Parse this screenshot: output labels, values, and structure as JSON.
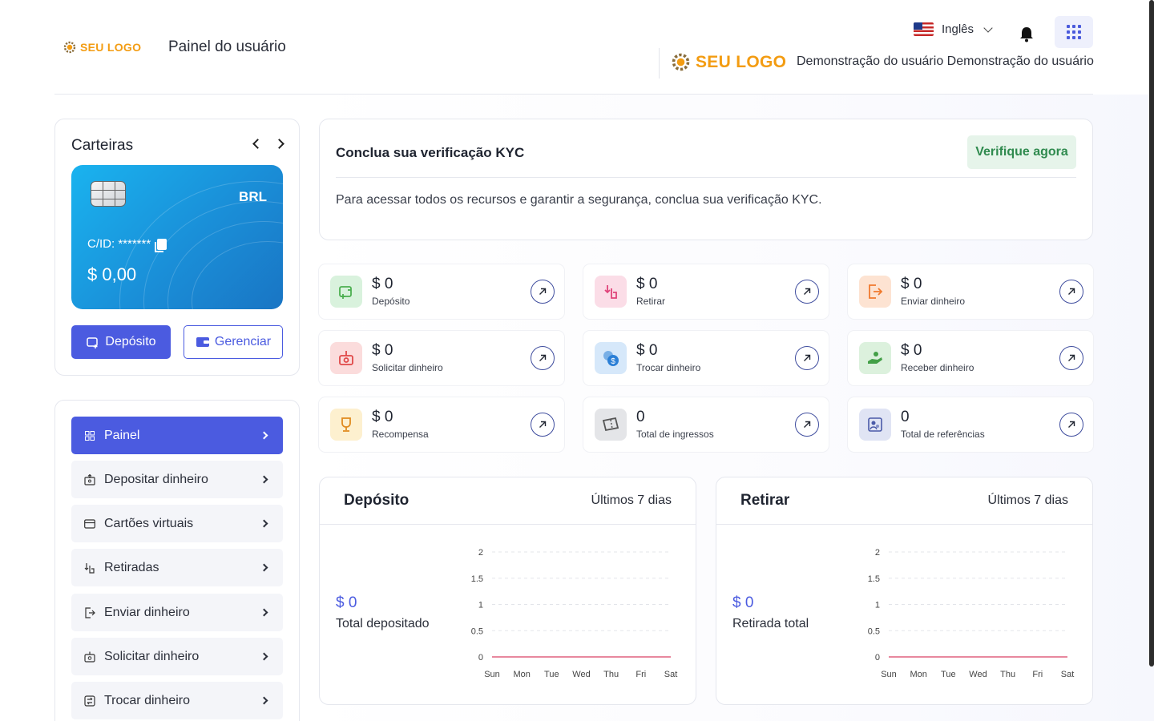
{
  "header": {
    "logo_text": "SEU LOGO",
    "page_title": "Painel do usuário",
    "language": "Inglês",
    "brand_logo_text": "SEU LOGO",
    "user_name": "Demonstração do usuário Demonstração do usuário"
  },
  "wallet": {
    "title": "Carteiras",
    "currency": "BRL",
    "card_id": "C/ID: *******",
    "balance": "$ 0,00",
    "deposit_label": "Depósito",
    "manage_label": "Gerenciar"
  },
  "sidebar": {
    "items": [
      {
        "label": "Painel",
        "icon": "dashboard-icon",
        "active": true
      },
      {
        "label": "Depositar dinheiro",
        "icon": "deposit-money-icon"
      },
      {
        "label": "Cartões virtuais",
        "icon": "credit-card-icon"
      },
      {
        "label": "Retiradas",
        "icon": "withdraw-icon"
      },
      {
        "label": "Enviar dinheiro",
        "icon": "send-money-icon"
      },
      {
        "label": "Solicitar dinheiro",
        "icon": "request-money-icon"
      },
      {
        "label": "Trocar dinheiro",
        "icon": "exchange-icon"
      }
    ]
  },
  "kyc": {
    "title": "Conclua sua verificação KYC",
    "button": "Verifique agora",
    "text": "Para acessar todos os recursos e garantir a segurança, conclua sua verificação KYC."
  },
  "stats": [
    {
      "value": "$ 0",
      "label": "Depósito",
      "icon": "wallet-plus-icon",
      "color": "#4caf50",
      "bg": "#d9f2dd"
    },
    {
      "value": "$ 0",
      "label": "Retirar",
      "icon": "hand-withdraw-icon",
      "color": "#e0447a",
      "bg": "#fbdde7"
    },
    {
      "value": "$ 0",
      "label": "Enviar dinheiro",
      "icon": "send-icon",
      "color": "#f07a2e",
      "bg": "#fde3d2"
    },
    {
      "value": "$ 0",
      "label": "Solicitar dinheiro",
      "icon": "request-icon",
      "color": "#e04848",
      "bg": "#fbdcdc"
    },
    {
      "value": "$ 0",
      "label": "Trocar dinheiro",
      "icon": "currency-exchange-icon",
      "color": "#2b7fd6",
      "bg": "#d6e8fa"
    },
    {
      "value": "$ 0",
      "label": "Receber dinheiro",
      "icon": "receive-money-icon",
      "color": "#43a047",
      "bg": "#dcf1dd"
    },
    {
      "value": "$ 0",
      "label": "Recompensa",
      "icon": "trophy-icon",
      "color": "#e08a1e",
      "bg": "#fdf0cf"
    },
    {
      "value": "0",
      "label": "Total de ingressos",
      "icon": "ticket-icon",
      "color": "#555555",
      "bg": "#e4e5e8"
    },
    {
      "value": "0",
      "label": "Total de referências",
      "icon": "referral-icon",
      "color": "#4a5aa8",
      "bg": "#e0e4f4"
    }
  ],
  "charts": {
    "deposit": {
      "title": "Depósito",
      "range": "Últimos 7 dias",
      "amount": "$ 0",
      "subtitle": "Total depositado"
    },
    "withdraw": {
      "title": "Retirar",
      "range": "Últimos 7 dias",
      "amount": "$ 0",
      "subtitle": "Retirada total"
    }
  },
  "chart_data": [
    {
      "type": "line",
      "categories": [
        "Sun",
        "Mon",
        "Tue",
        "Wed",
        "Thu",
        "Fri",
        "Sat"
      ],
      "series": [
        {
          "values": [
            0,
            0,
            0,
            0,
            0,
            0,
            0
          ]
        }
      ],
      "yticks": [
        "0",
        "0.5",
        "1",
        "1.5",
        "2"
      ],
      "ylim": [
        0,
        2
      ],
      "grid": true,
      "color": "#e0607e"
    },
    {
      "type": "line",
      "categories": [
        "Sun",
        "Mon",
        "Tue",
        "Wed",
        "Thu",
        "Fri",
        "Sat"
      ],
      "series": [
        {
          "values": [
            0,
            0,
            0,
            0,
            0,
            0,
            0
          ]
        }
      ],
      "yticks": [
        "0",
        "0.5",
        "1",
        "1.5",
        "2"
      ],
      "ylim": [
        0,
        2
      ],
      "grid": true,
      "color": "#e0607e"
    }
  ]
}
